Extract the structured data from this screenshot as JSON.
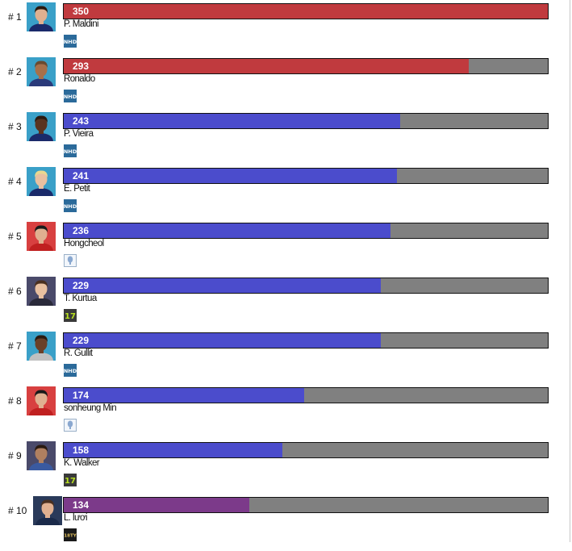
{
  "chart_data": {
    "type": "bar",
    "orientation": "horizontal",
    "max_value": 350,
    "grid": false,
    "legend": "none",
    "items": [
      {
        "rank": "# 1",
        "name": "P. Maldini",
        "value": 350,
        "bar_color": "#c03a3e",
        "badge": "NHD",
        "badge_icon": "nhd-season-icon",
        "avatar": {
          "bg": "#3aa0c8",
          "skin": "#e0b090",
          "hair": "#2a1a10",
          "shirt": "#1a2a6a"
        }
      },
      {
        "rank": "# 2",
        "name": "Ronaldo",
        "value": 293,
        "bar_color": "#c03a3e",
        "badge": "NHD",
        "badge_icon": "nhd-season-icon",
        "avatar": {
          "bg": "#3aa0c8",
          "skin": "#a8704a",
          "hair": "#6a4a30",
          "shirt": "#2a3a7a"
        }
      },
      {
        "rank": "# 3",
        "name": "P. Vieira",
        "value": 243,
        "bar_color": "#4b4ccc",
        "badge": "NHD",
        "badge_icon": "nhd-season-icon",
        "avatar": {
          "bg": "#3aa0c8",
          "skin": "#5a3420",
          "hair": "#2a1a10",
          "shirt": "#1a2a6a"
        }
      },
      {
        "rank": "# 4",
        "name": "E. Petit",
        "value": 241,
        "bar_color": "#4b4ccc",
        "badge": "NHD",
        "badge_icon": "nhd-season-icon",
        "avatar": {
          "bg": "#3aa0c8",
          "skin": "#e8c0a0",
          "hair": "#e8d890",
          "shirt": "#1a2a6a"
        }
      },
      {
        "rank": "# 5",
        "name": "Hongcheol",
        "value": 236,
        "bar_color": "#4b4ccc",
        "badge": "cup",
        "badge_icon": "korea-cup-season-icon",
        "avatar": {
          "bg": "#d84040",
          "skin": "#e0b090",
          "hair": "#1a1a1a",
          "shirt": "#c02020"
        }
      },
      {
        "rank": "# 6",
        "name": "T. Kurtua",
        "value": 229,
        "bar_color": "#4b4ccc",
        "badge": "17",
        "badge_icon": "season-17-icon",
        "avatar": {
          "bg": "#4a4a6a",
          "skin": "#e8c0a0",
          "hair": "#4a3020",
          "shirt": "#2a2a3a"
        }
      },
      {
        "rank": "# 7",
        "name": "R. Gullit",
        "value": 229,
        "bar_color": "#4b4ccc",
        "badge": "NHD",
        "badge_icon": "nhd-season-icon",
        "avatar": {
          "bg": "#3aa0c8",
          "skin": "#6a4028",
          "hair": "#2a1a10",
          "shirt": "#c0c0c0"
        }
      },
      {
        "rank": "# 8",
        "name": "sonheung Min",
        "value": 174,
        "bar_color": "#4b4ccc",
        "badge": "cup",
        "badge_icon": "korea-cup-season-icon",
        "avatar": {
          "bg": "#d84040",
          "skin": "#e0b090",
          "hair": "#1a1a1a",
          "shirt": "#c02020"
        }
      },
      {
        "rank": "# 9",
        "name": "K. Walker",
        "value": 158,
        "bar_color": "#4b4ccc",
        "badge": "17",
        "badge_icon": "season-17-icon",
        "avatar": {
          "bg": "#4a4a6a",
          "skin": "#b08060",
          "hair": "#2a1a10",
          "shirt": "#3a5aa0"
        }
      },
      {
        "rank": "# 10",
        "name": "L. lươi",
        "value": 134,
        "bar_color": "#7c3a8a",
        "badge": "18TY",
        "badge_icon": "season-18ty-icon",
        "avatar": {
          "bg": "#2a3a5a",
          "skin": "#e0b090",
          "hair": "#4a3020",
          "shirt": "#1a2a4a"
        }
      }
    ]
  }
}
